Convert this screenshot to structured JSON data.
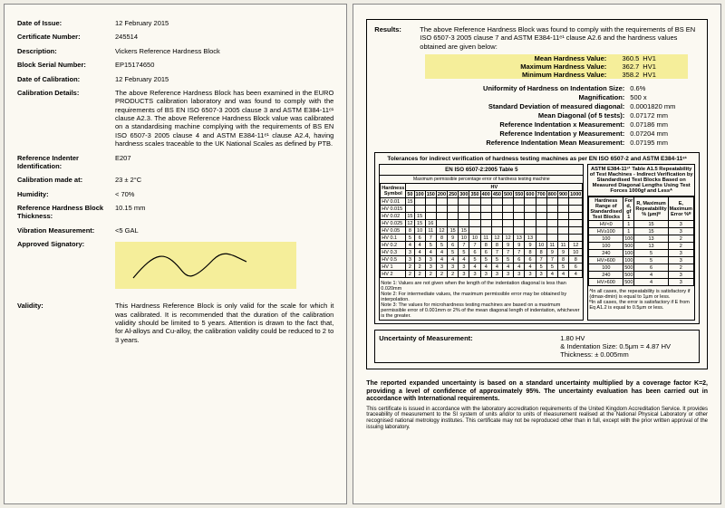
{
  "left": {
    "date_of_issue": {
      "label": "Date of Issue:",
      "value": "12 February 2015"
    },
    "cert_no": {
      "label": "Certificate Number:",
      "value": "245514"
    },
    "description": {
      "label": "Description:",
      "value": "Vickers Reference Hardness Block"
    },
    "serial": {
      "label": "Block Serial Number:",
      "value": "EP15174650"
    },
    "date_cal": {
      "label": "Date of Calibration:",
      "value": "12 February 2015"
    },
    "cal_details": {
      "label": "Calibration Details:",
      "value": "The above Reference Hardness Block has been examined in the EURO PRODUCTS calibration laboratory and was found to comply with the requirements of BS EN ISO 6507-3 2005 clause 3 and ASTM E384-11ᵉ¹ clause A2.3. The above Reference Hardness Block value was calibrated on a standardising machine complying with the requirements of BS EN ISO 6507-3 2005 clause 4 and ASTM E384-11ᵉ¹ clause A2.4, having hardness scales traceable to the UK National Scales as defined by PTB."
    },
    "indenter": {
      "label": "Reference Indenter Identification:",
      "value": "E207"
    },
    "cal_at": {
      "label": "Calibration made at:",
      "value": "23 ± 2°C"
    },
    "humidity": {
      "label": "Humidity:",
      "value": "< 70%"
    },
    "thickness": {
      "label": "Reference Hardness Block Thickness:",
      "value": "10.15 mm"
    },
    "vibration": {
      "label": "Vibration Measurement:",
      "value": "<5 GAL"
    },
    "signatory": {
      "label": "Approved Signatory:"
    },
    "validity": {
      "label": "Validity:",
      "value": "This Hardness Reference Block is only valid for the scale for which it was calibrated. It is recommended that the duration of the calibration validity should be limited to 5 years. Attention is drawn to the fact that, for Al-alloys and Cu-alloy, the calibration validity could be reduced to 2 to 3 years."
    }
  },
  "right": {
    "results_label": "Results:",
    "results_text": "The above Reference Hardness Block was found to comply with the requirements of BS EN ISO 6507-3 2005 clause 7 and ASTM E384-11ᵉ¹ clause A2.6 and the hardness values obtained are given below:",
    "hilite": [
      {
        "k": "Mean Hardness Value:",
        "v": "360.5",
        "u": "HV1"
      },
      {
        "k": "Maximum Hardness Value:",
        "v": "362.7",
        "u": "HV1"
      },
      {
        "k": "Minimum Hardness Value:",
        "v": "358.2",
        "u": "HV1"
      }
    ],
    "measures": [
      {
        "k": "Uniformity of Hardness on Indentation Size:",
        "v": "0.6%"
      },
      {
        "k": "Magnification:",
        "v": "500 x"
      },
      {
        "k": "Standard Deviation of measured diagonal:",
        "v": "0.0001820 mm"
      },
      {
        "k": "Mean Diagonal (of 5 tests):",
        "v": "0.07172 mm"
      },
      {
        "k": "Reference Indentation x Measurement:",
        "v": "0.07186 mm"
      },
      {
        "k": "Reference Indentation y Measurement:",
        "v": "0.07204 mm"
      },
      {
        "k": "Reference Indentation Mean Measurement:",
        "v": "0.07195 mm"
      }
    ],
    "tol_title": "Tolerances for indirect verification of hardness testing machines as per EN ISO 6507-2 and ASTM E384-11ᵉ¹",
    "left_table": {
      "title": "EN ISO 6507-2:2005 Table 5",
      "sub": "Maximum permissible percentage error of hardness testing machine",
      "hcol": "Hardness Symbol",
      "forces": [
        "50",
        "100",
        "150",
        "200",
        "250",
        "300",
        "350",
        "400",
        "450",
        "500",
        "550",
        "600",
        "700",
        "800",
        "900",
        "1000"
      ],
      "rows": [
        {
          "s": "HV 0.01",
          "v": [
            "15"
          ]
        },
        {
          "s": "HV 0.015",
          "v": []
        },
        {
          "s": "HV 0.02",
          "v": [
            "15",
            "15"
          ]
        },
        {
          "s": "HV 0.025",
          "v": [
            "12",
            "15",
            "16"
          ]
        },
        {
          "s": "HV 0.05",
          "v": [
            "8",
            "10",
            "11",
            "12",
            "15",
            "15"
          ]
        },
        {
          "s": "HV 0.1",
          "v": [
            "5",
            "6",
            "7",
            "8",
            "9",
            "10",
            "10",
            "11",
            "12",
            "12",
            "13",
            "13"
          ]
        },
        {
          "s": "HV 0.2",
          "v": [
            "4",
            "4",
            "5",
            "5",
            "6",
            "7",
            "7",
            "8",
            "8",
            "9",
            "9",
            "9",
            "10",
            "11",
            "11",
            "12"
          ]
        },
        {
          "s": "HV 0.3",
          "v": [
            "3",
            "4",
            "4",
            "4",
            "5",
            "5",
            "6",
            "6",
            "7",
            "7",
            "7",
            "8",
            "8",
            "9",
            "9",
            "10"
          ]
        },
        {
          "s": "HV 0.5",
          "v": [
            "3",
            "3",
            "3",
            "4",
            "4",
            "4",
            "5",
            "5",
            "5",
            "5",
            "6",
            "6",
            "7",
            "7",
            "8",
            "8"
          ]
        },
        {
          "s": "HV 1",
          "v": [
            "2",
            "2",
            "3",
            "3",
            "3",
            "3",
            "4",
            "4",
            "4",
            "4",
            "4",
            "4",
            "5",
            "5",
            "5",
            "6"
          ]
        },
        {
          "s": "HV 2",
          "v": [
            "2",
            "2",
            "2",
            "2",
            "2",
            "3",
            "3",
            "3",
            "3",
            "3",
            "3",
            "3",
            "3",
            "4",
            "4",
            "4"
          ]
        }
      ],
      "notes": "Note 1: Values are not given when the length of the indentation diagonal is less than 0.020mm\nNote 2: For intermediate values, the maximum permissible error may be obtained by interpolation.\nNote 3: The values for microhardness testing machines are based on a maximum permissible error of 0.001mm or 2% of the mean diagonal length of indentation, whichever is the greater."
    },
    "right_table": {
      "title": "ASTM E384-11ᵉ¹ Table A1.5  Repeatability of Test Machines - Indirect Verification by Standardised Test Blocks Based on Measured Diagonal Lengths Using Test Forces 1000gf and Lessᴬ",
      "cols": [
        "Hardness Range of Standardised Test Blocks",
        "For d, gf\n1<F≤100",
        "R, Maximum Repeatability % (µm)ᴮ",
        "E, Maximum Error %ᴮ"
      ],
      "rows": [
        [
          "HV<0",
          "1<F≤100",
          "15",
          "3"
        ],
        [
          "HV≥100",
          "1<F≤100",
          "15",
          "3"
        ],
        [
          "100<HV≤240",
          "100<F≤500",
          "13",
          "2"
        ],
        [
          "100<HV≤240",
          "500<F≤1000",
          "13",
          "2"
        ],
        [
          "240<HV≤600",
          "100<F≤500",
          "5",
          "3"
        ],
        [
          "HV>600",
          "100<F≤500",
          "5",
          "3"
        ],
        [
          "100<HV≤240",
          "500<F≤1000",
          "6",
          "2"
        ],
        [
          "240<HV≤600",
          "500<F≤1000",
          "4",
          "3"
        ],
        [
          "HV>600",
          "500<F≤1000",
          "4",
          "3"
        ]
      ],
      "noteA": "ᴬIn all cases, the repeatability is satisfactory if (dmax-dmin) is equal to 1µm or less.\nᴮIn all cases, the error is satisfactory if E from Eq A1.2 is equal to 0.5µm or less."
    },
    "uncert": {
      "label": "Uncertainty of Measurement:",
      "l1": "1.80 HV",
      "l2": "& Indentation Size: 0.5μm = 4.87 HV",
      "l3": "Thickness:  ± 0.005mm"
    },
    "footer_bold": "The reported expanded uncertainty is based on a standard uncertainty multiplied by a coverage factor K=2, providing a level of confidence of approximately 95%. The uncertainty evaluation has been carried out in accordance with International requirements.",
    "footer_small": "This certificate is issued in accordance with the laboratory accreditation requirements of the United Kingdom Accreditation Service. It provides traceability of measurement to the SI system of units and/or to units of measurement realised at the National Physical Laboratory or other recognised national metrology institutes. This certificate may not be reproduced other than in full, except with the prior written approval of the issuing laboratory."
  },
  "colors": {
    "hilite": "#f5ee9a",
    "page": "#fbf9f2",
    "bg": "#f0eee6"
  }
}
